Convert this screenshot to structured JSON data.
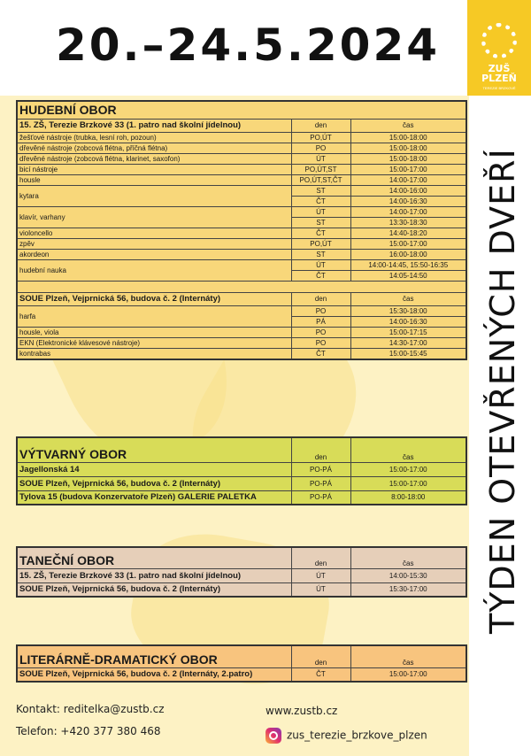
{
  "header": {
    "title": "20.–24.5.2024",
    "vertical_title": "TÝDEN OTEVŘENÝCH DVEŘÍ",
    "logo_text": [
      "ZUŠ",
      "PLZEŇ",
      "TEREZIE BRZKOVÉ"
    ]
  },
  "colors": {
    "hudebni": "#f8d77a",
    "vytvarny": "#d8dc58",
    "tanecni": "#e6cfb9",
    "literarne": "#f8c47e",
    "background": "#fdf2c4",
    "logo": "#f6c925"
  },
  "sections": [
    {
      "id": "hudebni",
      "title": "HUDEBNÍ OBOR",
      "locations": [
        {
          "name": "15. ZŠ, Terezie Brzkové 33 (1. patro nad školní jídelnou)",
          "den": "den",
          "cas": "čas",
          "rows": [
            {
              "name": "žešťové nástroje (trubka, lesní roh, pozoun)",
              "slots": [
                [
                  "PO,ÚT",
                  "15:00-18:00"
                ]
              ]
            },
            {
              "name": "dřevěné nástroje (zobcová flétna, příčná flétna)",
              "slots": [
                [
                  "PO",
                  "15:00-18:00"
                ]
              ]
            },
            {
              "name": "dřevěné nástroje (zobcová flétna, klarinet, saxofon)",
              "slots": [
                [
                  "ÚT",
                  "15:00-18:00"
                ]
              ]
            },
            {
              "name": "bicí nástroje",
              "slots": [
                [
                  "PO,ÚT,ST",
                  "15:00-17:00"
                ]
              ]
            },
            {
              "name": "housle",
              "slots": [
                [
                  "PO,ÚT,ST,ČT",
                  "14:00-17:00"
                ]
              ]
            },
            {
              "name": "kytara",
              "slots": [
                [
                  "ST",
                  "14:00-16:00"
                ],
                [
                  "ČT",
                  "14:00-16:30"
                ]
              ]
            },
            {
              "name": "klavír, varhany",
              "slots": [
                [
                  "ÚT",
                  "14:00-17:00"
                ],
                [
                  "ST",
                  "13:30-18:30"
                ]
              ]
            },
            {
              "name": "violoncello",
              "slots": [
                [
                  "ČT",
                  "14:40-18:20"
                ]
              ]
            },
            {
              "name": "zpěv",
              "slots": [
                [
                  "PO,ÚT",
                  "15:00-17:00"
                ]
              ]
            },
            {
              "name": "akordeon",
              "slots": [
                [
                  "ST",
                  "16:00-18:00"
                ]
              ]
            },
            {
              "name": "hudební nauka",
              "slots": [
                [
                  "ÚT",
                  "14:00-14:45, 15:50-16:35"
                ],
                [
                  "ČT",
                  "14:05-14:50"
                ]
              ]
            }
          ]
        },
        {
          "name": "SOUE Plzeň, Vejprnická 56, budova č. 2 (Internáty)",
          "den": "den",
          "cas": "čas",
          "rows": [
            {
              "name": "harfa",
              "slots": [
                [
                  "PO",
                  "15:30-18:00"
                ],
                [
                  "PÁ",
                  "14:00-16:30"
                ]
              ]
            },
            {
              "name": "housle, viola",
              "slots": [
                [
                  "PO",
                  "15:00-17:15"
                ]
              ]
            },
            {
              "name": "EKN (Elektronické klávesové nástroje)",
              "slots": [
                [
                  "PO",
                  "14:30-17:00"
                ]
              ]
            },
            {
              "name": "kontrabas",
              "slots": [
                [
                  "ČT",
                  "15:00-15:45"
                ]
              ]
            }
          ]
        }
      ]
    },
    {
      "id": "vytvarny",
      "title": "VÝTVARNÝ OBOR",
      "den": "den",
      "cas": "čas",
      "rows": [
        [
          "Jagellonská 14",
          "PO-PÁ",
          "15:00-17:00"
        ],
        [
          "SOUE Plzeň, Vejprnická 56, budova č. 2 (Internáty)",
          "PO-PÁ",
          "15:00-17:00"
        ],
        [
          "Tylova 15 (budova Konzervatoře Plzeň) GALERIE PALETKA",
          "PO-PÁ",
          "8:00-18:00"
        ]
      ]
    },
    {
      "id": "tanecni",
      "title": "TANEČNÍ OBOR",
      "den": "den",
      "cas": "čas",
      "rows": [
        [
          "15. ZŠ, Terezie Brzkové 33 (1. patro nad školní jídelnou)",
          "ÚT",
          "14:00-15:30"
        ],
        [
          "SOUE Plzeň, Vejprnická 56, budova č. 2 (Internáty)",
          "ÚT",
          "15:30-17:00"
        ]
      ]
    },
    {
      "id": "literarne",
      "title": "LITERÁRNĚ-DRAMATICKÝ OBOR",
      "den": "den",
      "cas": "čas",
      "rows": [
        [
          "SOUE Plzeň, Vejprnická 56, budova č. 2 (Internáty, 2.patro)",
          "ČT",
          "15:00-17:00"
        ]
      ]
    }
  ],
  "footer": {
    "contact": "Kontakt: reditelka@zustb.cz",
    "phone": "Telefon: +420 377 380 468",
    "web": "www.zustb.cz",
    "instagram": "zus_terezie_brzkove_plzen",
    "instagram_icon": "instagram-icon"
  }
}
